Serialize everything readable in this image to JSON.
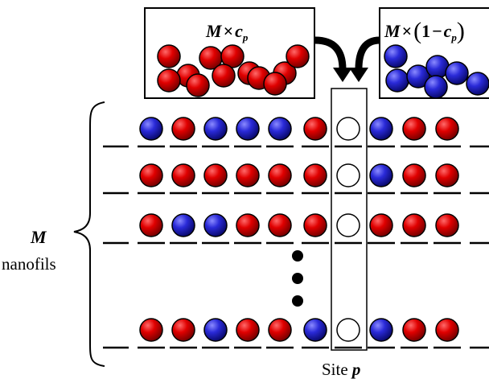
{
  "reservoir_red": {
    "label_main": "M",
    "label_times": "×",
    "label_var": "c",
    "label_sub": "p"
  },
  "reservoir_blue": {
    "label_main": "M",
    "label_times": "×",
    "label_open": "(",
    "label_one": "1",
    "label_minus": "−",
    "label_var": "c",
    "label_sub": "p",
    "label_close": ")"
  },
  "brace_label": {
    "symbol": "M",
    "text": "nanofils"
  },
  "site_label": {
    "prefix": "Site ",
    "var": "p"
  },
  "colors": {
    "red_atom": "#dd0000",
    "blue_atom": "#2a2ad8",
    "vacancy": "#ffffff",
    "outline": "#000000"
  },
  "rows": [
    [
      "blue",
      "red",
      "blue",
      "blue",
      "blue",
      "red",
      "empty",
      "blue",
      "red",
      "red"
    ],
    [
      "red",
      "red",
      "red",
      "red",
      "red",
      "red",
      "empty",
      "blue",
      "red",
      "red"
    ],
    [
      "red",
      "blue",
      "blue",
      "red",
      "red",
      "red",
      "empty",
      "red",
      "red",
      "red"
    ],
    [
      "red",
      "red",
      "blue",
      "red",
      "red",
      "blue",
      "empty",
      "blue",
      "red",
      "red"
    ]
  ],
  "ellipsis_dots": 3
}
